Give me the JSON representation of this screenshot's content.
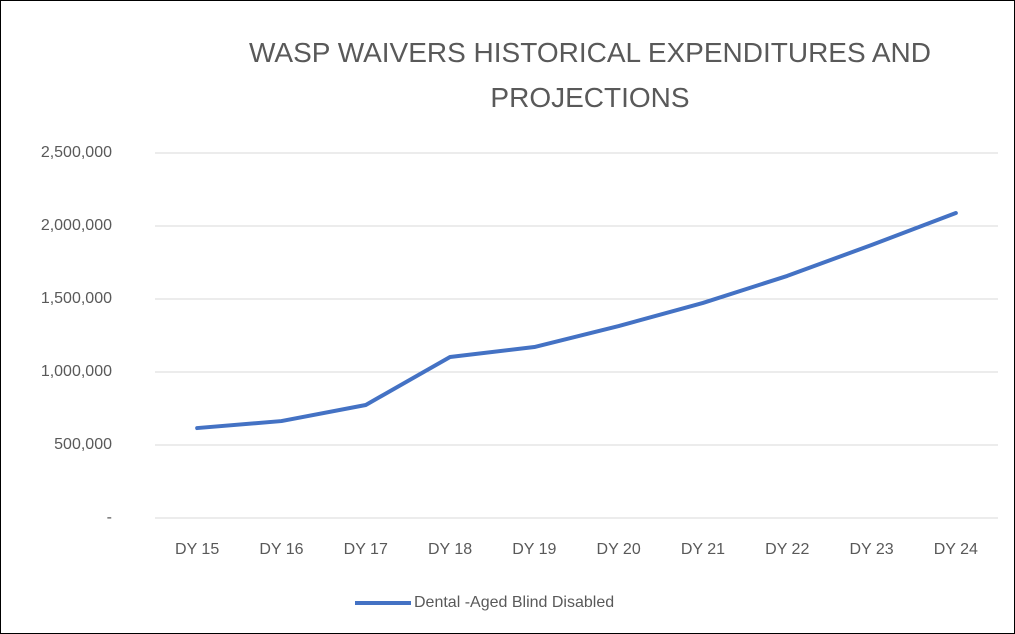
{
  "chart_data": {
    "type": "line",
    "title": "WASP WAIVERS HISTORICAL EXPENDITURES AND PROJECTIONS",
    "categories": [
      "DY 15",
      "DY 16",
      "DY 17",
      "DY 18",
      "DY 19",
      "DY 20",
      "DY 21",
      "DY 22",
      "DY 23",
      "DY 24"
    ],
    "series": [
      {
        "name": "Dental -Aged Blind Disabled",
        "color": "#4472c4",
        "values": [
          616000,
          664000,
          774000,
          1103000,
          1171000,
          1315000,
          1473000,
          1658000,
          1870000,
          2089000
        ]
      }
    ],
    "ylim": [
      0,
      2500000
    ],
    "yticks": [
      {
        "value": 0,
        "label": "-"
      },
      {
        "value": 500000,
        "label": "500,000"
      },
      {
        "value": 1000000,
        "label": "1,000,000"
      },
      {
        "value": 1500000,
        "label": "1,500,000"
      },
      {
        "value": 2000000,
        "label": "2,000,000"
      },
      {
        "value": 2500000,
        "label": "2,500,000"
      }
    ],
    "grid": true,
    "legend": "bottom"
  }
}
